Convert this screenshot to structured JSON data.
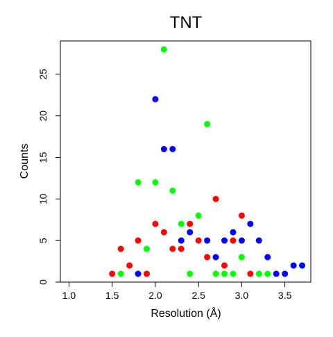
{
  "chart_data": {
    "type": "scatter",
    "title": "TNT",
    "xlabel": "Resolution (Å)",
    "ylabel": "Counts",
    "xlim": [
      0.9,
      3.8
    ],
    "ylim": [
      0,
      29
    ],
    "xticks": [
      "1.0",
      "1.5",
      "2.0",
      "2.5",
      "3.0",
      "3.5"
    ],
    "xtick_values": [
      1.0,
      1.5,
      2.0,
      2.5,
      3.0,
      3.5
    ],
    "yticks": [
      "0",
      "5",
      "10",
      "15",
      "20",
      "25"
    ],
    "ytick_values": [
      0,
      5,
      10,
      15,
      20,
      25
    ],
    "grid": false,
    "legend": "none",
    "series": [
      {
        "color": "#ff0000",
        "points": [
          [
            1.5,
            1
          ],
          [
            1.6,
            4
          ],
          [
            1.7,
            2
          ],
          [
            1.8,
            5
          ],
          [
            1.9,
            1
          ],
          [
            2.0,
            7
          ],
          [
            2.1,
            6
          ],
          [
            2.2,
            4
          ],
          [
            2.3,
            4
          ],
          [
            2.4,
            7
          ],
          [
            2.5,
            5
          ],
          [
            2.6,
            3
          ],
          [
            2.7,
            10
          ],
          [
            2.8,
            2
          ],
          [
            2.9,
            5
          ],
          [
            3.0,
            8
          ],
          [
            3.1,
            1
          ]
        ]
      },
      {
        "color": "#00ff00",
        "points": [
          [
            1.6,
            1
          ],
          [
            1.8,
            12
          ],
          [
            1.9,
            4
          ],
          [
            2.0,
            12
          ],
          [
            2.1,
            28
          ],
          [
            2.2,
            11
          ],
          [
            2.3,
            7
          ],
          [
            2.4,
            1
          ],
          [
            2.5,
            8
          ],
          [
            2.6,
            19
          ],
          [
            2.7,
            1
          ],
          [
            2.8,
            1
          ],
          [
            2.9,
            1
          ],
          [
            3.0,
            3
          ],
          [
            3.2,
            1
          ],
          [
            3.3,
            1
          ]
        ]
      },
      {
        "color": "#0000ff",
        "points": [
          [
            1.8,
            1
          ],
          [
            2.0,
            22
          ],
          [
            2.1,
            16
          ],
          [
            2.2,
            16
          ],
          [
            2.3,
            5
          ],
          [
            2.4,
            6
          ],
          [
            2.6,
            5
          ],
          [
            2.7,
            3
          ],
          [
            2.8,
            5
          ],
          [
            2.9,
            6
          ],
          [
            3.0,
            5
          ],
          [
            3.1,
            7
          ],
          [
            3.2,
            5
          ],
          [
            3.3,
            3
          ],
          [
            3.4,
            1
          ],
          [
            3.5,
            1
          ],
          [
            3.6,
            2
          ],
          [
            3.7,
            2
          ]
        ]
      }
    ]
  }
}
